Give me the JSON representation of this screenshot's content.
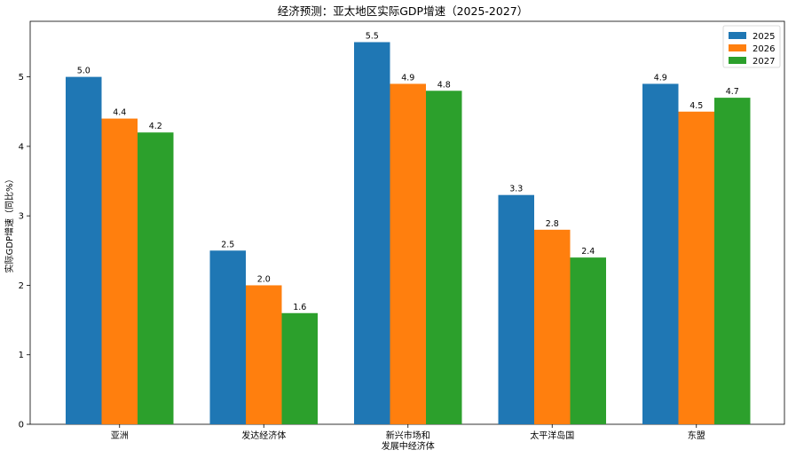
{
  "chart_data": {
    "type": "bar",
    "title": "经济预测：亚太地区实际GDP增速（2025-2027）",
    "xlabel": "",
    "ylabel": "实际GDP增速（同比%）",
    "categories": [
      "亚洲",
      "发达经济体",
      "新兴市场和\n发展中经济体",
      "太平洋岛国",
      "东盟"
    ],
    "series": [
      {
        "name": "2025",
        "color": "#1f77b4",
        "values": [
          5.0,
          2.5,
          5.5,
          3.3,
          4.9
        ]
      },
      {
        "name": "2026",
        "color": "#ff7f0e",
        "values": [
          4.4,
          2.0,
          4.9,
          2.8,
          4.5
        ]
      },
      {
        "name": "2027",
        "color": "#2ca02c",
        "values": [
          4.2,
          1.6,
          4.8,
          2.4,
          4.7
        ]
      }
    ],
    "ylim": [
      0,
      5.8
    ],
    "yticks": [
      0,
      1,
      2,
      3,
      4,
      5
    ],
    "grid": false,
    "legend": "top-right",
    "data_labels": true
  }
}
